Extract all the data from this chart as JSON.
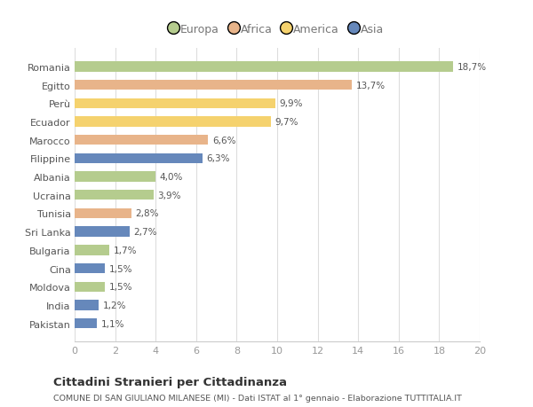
{
  "countries": [
    "Romania",
    "Egitto",
    "Perù",
    "Ecuador",
    "Marocco",
    "Filippine",
    "Albania",
    "Ucraina",
    "Tunisia",
    "Sri Lanka",
    "Bulgaria",
    "Cina",
    "Moldova",
    "India",
    "Pakistan"
  ],
  "values": [
    18.7,
    13.7,
    9.9,
    9.7,
    6.6,
    6.3,
    4.0,
    3.9,
    2.8,
    2.7,
    1.7,
    1.5,
    1.5,
    1.2,
    1.1
  ],
  "labels": [
    "18,7%",
    "13,7%",
    "9,9%",
    "9,7%",
    "6,6%",
    "6,3%",
    "4,0%",
    "3,9%",
    "2,8%",
    "2,7%",
    "1,7%",
    "1,5%",
    "1,5%",
    "1,2%",
    "1,1%"
  ],
  "colors": [
    "#b5cc8e",
    "#e8b48a",
    "#f5d26e",
    "#f5d26e",
    "#e8b48a",
    "#6688bb",
    "#b5cc8e",
    "#b5cc8e",
    "#e8b48a",
    "#6688bb",
    "#b5cc8e",
    "#6688bb",
    "#b5cc8e",
    "#6688bb",
    "#6688bb"
  ],
  "legend_labels": [
    "Europa",
    "Africa",
    "America",
    "Asia"
  ],
  "legend_colors": [
    "#b5cc8e",
    "#e8b48a",
    "#f5d26e",
    "#6688bb"
  ],
  "xlim": [
    0,
    20
  ],
  "xticks": [
    0,
    2,
    4,
    6,
    8,
    10,
    12,
    14,
    16,
    18,
    20
  ],
  "title": "Cittadini Stranieri per Cittadinanza",
  "subtitle": "COMUNE DI SAN GIULIANO MILANESE (MI) - Dati ISTAT al 1° gennaio - Elaborazione TUTTITALIA.IT",
  "background_color": "#ffffff",
  "bar_height": 0.55
}
